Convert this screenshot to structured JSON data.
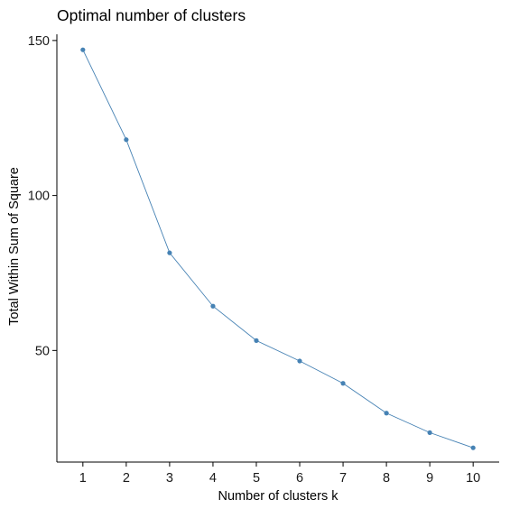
{
  "chart_data": {
    "type": "line",
    "title": "Optimal number of clusters",
    "xlabel": "Number of clusters k",
    "ylabel": "Total Within Sum of Square",
    "x": [
      1,
      2,
      3,
      4,
      5,
      6,
      7,
      8,
      9,
      10
    ],
    "series": [
      {
        "values": [
          147.0,
          118.0,
          81.5,
          64.3,
          53.2,
          46.6,
          39.4,
          29.8,
          23.5,
          18.6
        ]
      }
    ],
    "xticks": [
      "1",
      "2",
      "3",
      "4",
      "5",
      "6",
      "7",
      "8",
      "9",
      "10"
    ],
    "yticks": [
      50,
      100,
      150
    ],
    "xlim": [
      0.4,
      10.6
    ],
    "ylim": [
      14,
      152
    ],
    "grid": false,
    "legend": "none",
    "line_color": "#4682b4",
    "point_color": "#4682b4"
  }
}
